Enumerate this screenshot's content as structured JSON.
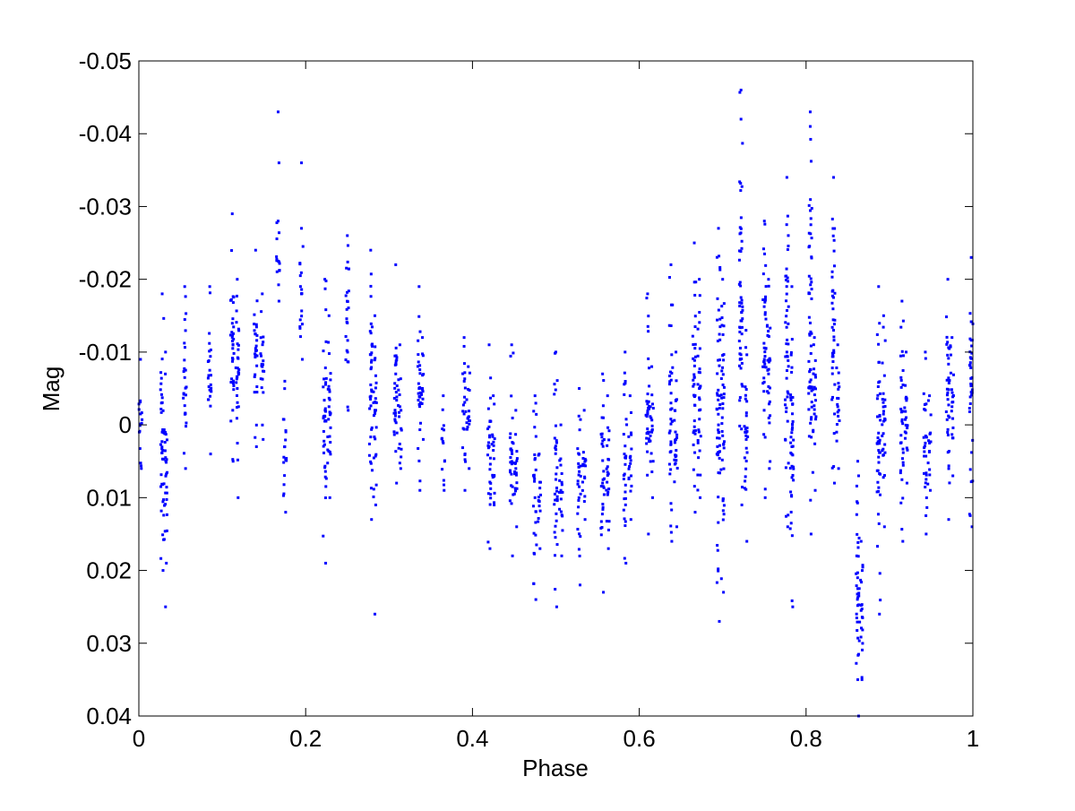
{
  "chart_data": {
    "type": "scatter",
    "title": "",
    "xlabel": "Phase",
    "ylabel": "Mag",
    "xlim": [
      0,
      1
    ],
    "ylim": [
      0.04,
      -0.05
    ],
    "y_inverted": true,
    "grid": false,
    "legend": "none",
    "xticks": [
      0,
      0.2,
      0.4,
      0.6,
      0.8,
      1
    ],
    "xtick_labels": [
      "0",
      "0.2",
      "0.4",
      "0.6",
      "0.8",
      "1"
    ],
    "yticks": [
      -0.05,
      -0.04,
      -0.03,
      -0.02,
      -0.01,
      0,
      0.01,
      0.02,
      0.03,
      0.04
    ],
    "ytick_labels": [
      "-0.05",
      "-0.04",
      "-0.03",
      "-0.02",
      "-0.01",
      "0",
      "0.01",
      "0.02",
      "0.03",
      "0.04"
    ],
    "marker_color": "#0000ff",
    "clusters": [
      {
        "x": 0.002,
        "ymin": -0.009,
        "ymax": 0.006
      },
      {
        "x": 0.028,
        "ymin": -0.018,
        "ymax": 0.02
      },
      {
        "x": 0.032,
        "ymin": -0.01,
        "ymax": 0.019
      },
      {
        "x": 0.055,
        "ymin": -0.019,
        "ymax": 0.006
      },
      {
        "x": 0.085,
        "ymin": -0.019,
        "ymax": 0.004
      },
      {
        "x": 0.112,
        "ymin": -0.029,
        "ymax": 0.005
      },
      {
        "x": 0.118,
        "ymin": -0.02,
        "ymax": 0.01
      },
      {
        "x": 0.14,
        "ymin": -0.024,
        "ymax": 0.003
      },
      {
        "x": 0.148,
        "ymin": -0.018,
        "ymax": 0.002
      },
      {
        "x": 0.167,
        "ymin": -0.028,
        "ymax": -0.017
      },
      {
        "x": 0.175,
        "ymin": -0.006,
        "ymax": 0.012
      },
      {
        "x": 0.195,
        "ymin": -0.027,
        "ymax": -0.009
      },
      {
        "x": 0.223,
        "ymin": -0.02,
        "ymax": 0.019
      },
      {
        "x": 0.228,
        "ymin": -0.015,
        "ymax": 0.01
      },
      {
        "x": 0.25,
        "ymin": -0.026,
        "ymax": -0.002
      },
      {
        "x": 0.278,
        "ymin": -0.024,
        "ymax": 0.013
      },
      {
        "x": 0.283,
        "ymin": -0.015,
        "ymax": 0.011
      },
      {
        "x": 0.308,
        "ymin": -0.022,
        "ymax": 0.008
      },
      {
        "x": 0.313,
        "ymin": -0.011,
        "ymax": 0.006
      },
      {
        "x": 0.336,
        "ymin": -0.019,
        "ymax": 0.009
      },
      {
        "x": 0.34,
        "ymin": -0.012,
        "ymax": 0.002
      },
      {
        "x": 0.365,
        "ymin": -0.004,
        "ymax": 0.009
      },
      {
        "x": 0.39,
        "ymin": -0.012,
        "ymax": 0.009
      },
      {
        "x": 0.395,
        "ymin": -0.008,
        "ymax": 0.006
      },
      {
        "x": 0.42,
        "ymin": -0.011,
        "ymax": 0.017
      },
      {
        "x": 0.425,
        "ymin": -0.004,
        "ymax": 0.011
      },
      {
        "x": 0.447,
        "ymin": -0.011,
        "ymax": 0.018
      },
      {
        "x": 0.452,
        "ymin": -0.002,
        "ymax": 0.014
      },
      {
        "x": 0.475,
        "ymin": -0.004,
        "ymax": 0.024
      },
      {
        "x": 0.48,
        "ymin": 0.004,
        "ymax": 0.017
      },
      {
        "x": 0.5,
        "ymin": -0.01,
        "ymax": 0.025
      },
      {
        "x": 0.506,
        "ymin": 0.0,
        "ymax": 0.018
      },
      {
        "x": 0.528,
        "ymin": -0.005,
        "ymax": 0.022
      },
      {
        "x": 0.534,
        "ymin": -0.002,
        "ymax": 0.013
      },
      {
        "x": 0.556,
        "ymin": -0.007,
        "ymax": 0.023
      },
      {
        "x": 0.562,
        "ymin": -0.004,
        "ymax": 0.017
      },
      {
        "x": 0.583,
        "ymin": -0.01,
        "ymax": 0.019
      },
      {
        "x": 0.589,
        "ymin": -0.004,
        "ymax": 0.013
      },
      {
        "x": 0.61,
        "ymin": -0.018,
        "ymax": 0.015
      },
      {
        "x": 0.615,
        "ymin": -0.008,
        "ymax": 0.01
      },
      {
        "x": 0.638,
        "ymin": -0.022,
        "ymax": 0.016
      },
      {
        "x": 0.644,
        "ymin": -0.01,
        "ymax": 0.014
      },
      {
        "x": 0.666,
        "ymin": -0.025,
        "ymax": 0.012
      },
      {
        "x": 0.672,
        "ymin": -0.02,
        "ymax": 0.01
      },
      {
        "x": 0.695,
        "ymin": -0.027,
        "ymax": 0.027
      },
      {
        "x": 0.7,
        "ymin": -0.02,
        "ymax": 0.023
      },
      {
        "x": 0.722,
        "ymin": -0.046,
        "ymax": 0.011
      },
      {
        "x": 0.728,
        "ymin": -0.013,
        "ymax": 0.016
      },
      {
        "x": 0.75,
        "ymin": -0.028,
        "ymax": 0.01
      },
      {
        "x": 0.755,
        "ymin": -0.02,
        "ymax": 0.006
      },
      {
        "x": 0.777,
        "ymin": -0.034,
        "ymax": 0.014
      },
      {
        "x": 0.783,
        "ymin": -0.019,
        "ymax": 0.025
      },
      {
        "x": 0.805,
        "ymin": -0.043,
        "ymax": 0.015
      },
      {
        "x": 0.81,
        "ymin": -0.012,
        "ymax": 0.009
      },
      {
        "x": 0.833,
        "ymin": -0.034,
        "ymax": 0.008
      },
      {
        "x": 0.838,
        "ymin": -0.011,
        "ymax": 0.006
      },
      {
        "x": 0.862,
        "ymin": 0.005,
        "ymax": 0.04
      },
      {
        "x": 0.866,
        "ymin": 0.016,
        "ymax": 0.035
      },
      {
        "x": 0.887,
        "ymin": -0.019,
        "ymax": 0.026
      },
      {
        "x": 0.893,
        "ymin": -0.015,
        "ymax": 0.014
      },
      {
        "x": 0.915,
        "ymin": -0.017,
        "ymax": 0.016
      },
      {
        "x": 0.92,
        "ymin": -0.01,
        "ymax": 0.008
      },
      {
        "x": 0.943,
        "ymin": -0.01,
        "ymax": 0.015
      },
      {
        "x": 0.948,
        "ymin": -0.004,
        "ymax": 0.009
      },
      {
        "x": 0.97,
        "ymin": -0.02,
        "ymax": 0.013
      },
      {
        "x": 0.975,
        "ymin": -0.012,
        "ymax": 0.007
      },
      {
        "x": 0.998,
        "ymin": -0.023,
        "ymax": 0.014
      }
    ],
    "outliers": [
      {
        "x": 0.167,
        "y": -0.043
      },
      {
        "x": 0.168,
        "y": -0.036
      },
      {
        "x": 0.195,
        "y": -0.036
      },
      {
        "x": 0.032,
        "y": 0.025
      },
      {
        "x": 0.283,
        "y": 0.026
      },
      {
        "x": 0.722,
        "y": -0.042
      },
      {
        "x": 0.805,
        "y": -0.041
      },
      {
        "x": 0.862,
        "y": 0.035
      }
    ]
  }
}
